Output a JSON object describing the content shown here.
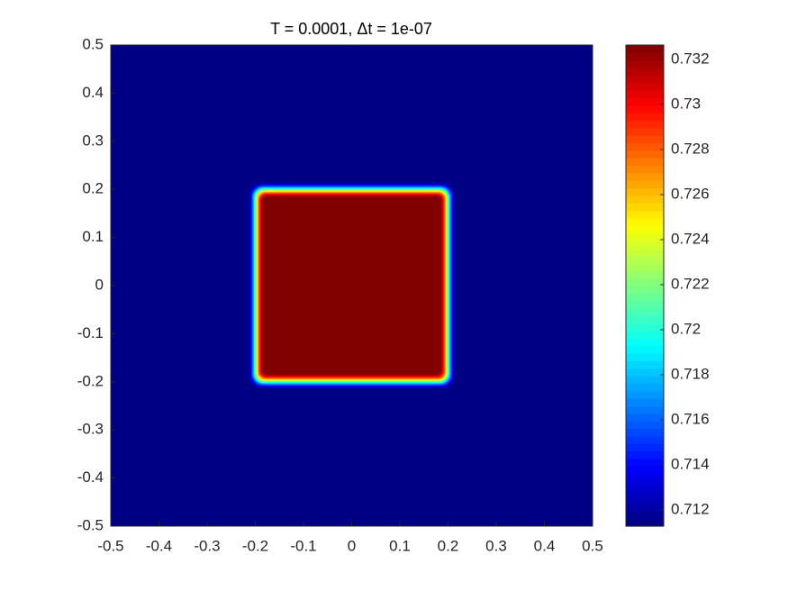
{
  "chart_data": {
    "type": "heatmap",
    "title": "T = 0.0001,  Δt = 1e-07",
    "xlim": [
      -0.5,
      0.5
    ],
    "ylim": [
      -0.5,
      0.5
    ],
    "xticks": [
      -0.5,
      -0.4,
      -0.3,
      -0.2,
      -0.1,
      0,
      0.1,
      0.2,
      0.3,
      0.4,
      0.5
    ],
    "yticks": [
      -0.5,
      -0.4,
      -0.3,
      -0.2,
      -0.1,
      0,
      0.1,
      0.2,
      0.3,
      0.4,
      0.5
    ],
    "background": 0.7114,
    "regions": [
      {
        "x": [
          -0.2,
          0.2
        ],
        "y": [
          -0.2,
          0.2
        ],
        "value": 0.7326
      }
    ],
    "colormap": "jet",
    "clim": [
      0.71128,
      0.73264
    ],
    "cticks": [
      0.712,
      0.714,
      0.716,
      0.718,
      0.72,
      0.722,
      0.724,
      0.726,
      0.728,
      0.73,
      0.732
    ]
  }
}
